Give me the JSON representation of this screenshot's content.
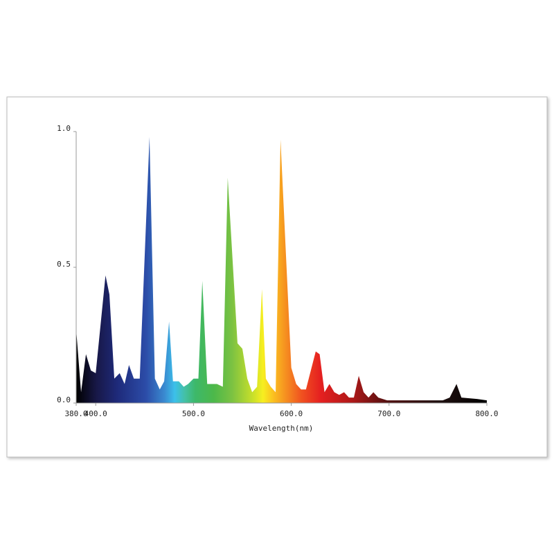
{
  "chart_data": {
    "type": "area",
    "x_label": "Wavelength(nm)",
    "x": [
      380,
      385,
      390,
      395,
      400,
      410,
      414,
      419,
      424.5,
      429.5,
      434,
      439,
      445,
      455,
      460.5,
      465.5,
      470,
      475,
      479,
      485,
      490,
      494.5,
      500,
      505,
      509,
      514,
      520,
      524,
      530,
      535,
      545,
      550,
      555,
      560,
      565,
      570,
      574,
      579,
      584,
      589,
      600,
      605,
      610,
      615,
      625,
      629,
      634,
      639,
      644,
      649,
      654,
      659,
      664,
      669,
      674,
      679,
      684,
      689,
      698,
      720,
      740,
      755,
      762,
      769,
      774,
      790,
      800
    ],
    "y": [
      0.27,
      0.04,
      0.18,
      0.12,
      0.11,
      0.47,
      0.4,
      0.09,
      0.11,
      0.07,
      0.14,
      0.09,
      0.09,
      0.98,
      0.09,
      0.05,
      0.08,
      0.3,
      0.08,
      0.08,
      0.06,
      0.07,
      0.09,
      0.09,
      0.45,
      0.07,
      0.07,
      0.07,
      0.06,
      0.83,
      0.22,
      0.2,
      0.09,
      0.04,
      0.06,
      0.42,
      0.09,
      0.06,
      0.04,
      0.97,
      0.13,
      0.07,
      0.05,
      0.05,
      0.19,
      0.18,
      0.04,
      0.07,
      0.04,
      0.03,
      0.04,
      0.02,
      0.02,
      0.1,
      0.04,
      0.02,
      0.04,
      0.02,
      0.01,
      0.01,
      0.01,
      0.01,
      0.02,
      0.07,
      0.02,
      0.015,
      0.01
    ],
    "xlim": [
      380,
      800
    ],
    "ylim": [
      0,
      1
    ],
    "xticks": [
      {
        "value": 380,
        "label": "380.0"
      },
      {
        "value": 400,
        "label": "400.0"
      },
      {
        "value": 500,
        "label": "500.0"
      },
      {
        "value": 600,
        "label": "600.0"
      },
      {
        "value": 700,
        "label": "700.0"
      },
      {
        "value": 800,
        "label": "800.0"
      }
    ],
    "yticks": [
      {
        "value": 0,
        "label": "0.0"
      },
      {
        "value": 0.5,
        "label": "0.5"
      },
      {
        "value": 1,
        "label": "1.0"
      }
    ]
  }
}
